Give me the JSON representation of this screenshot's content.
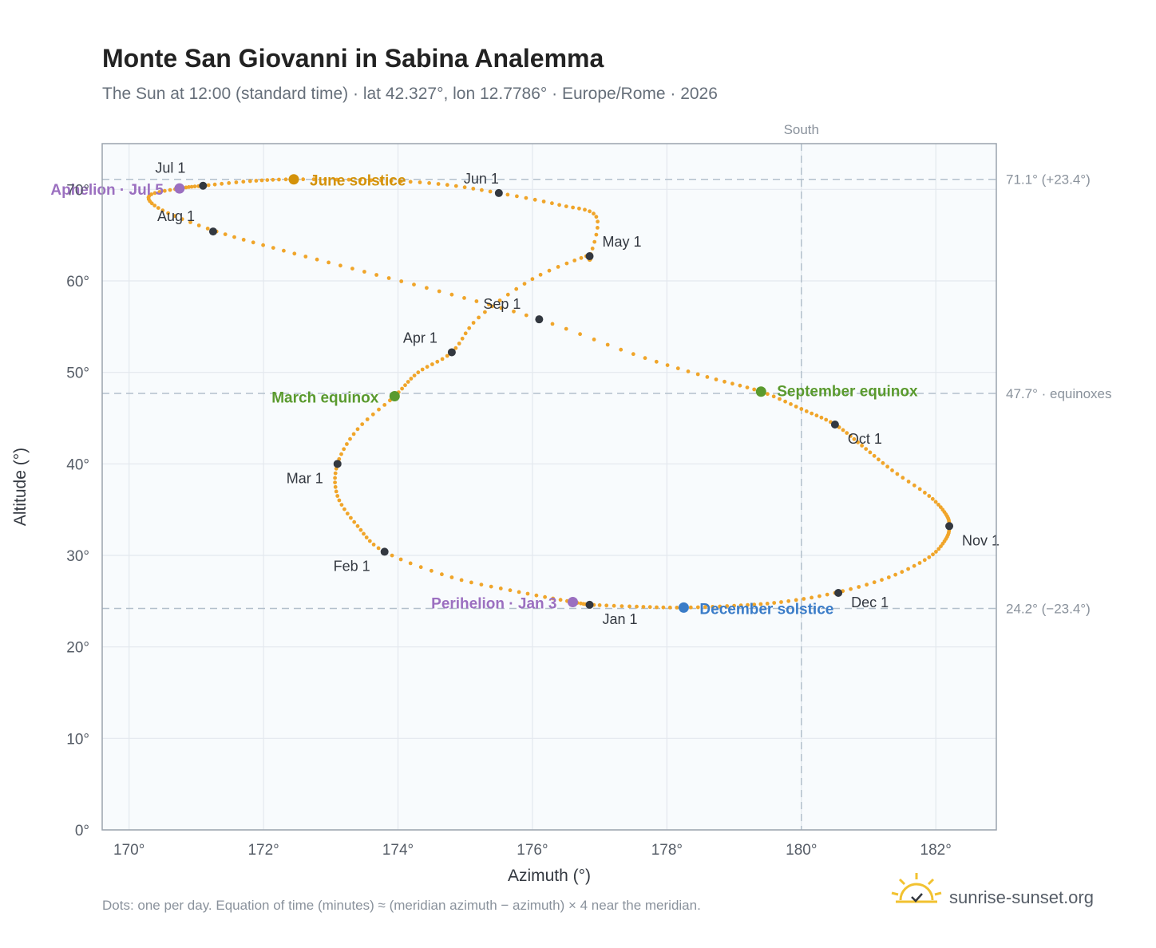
{
  "header": {
    "title": "Monte San Giovanni in Sabina Analemma",
    "subtitle": "The Sun at 12:00 (standard time) · lat 42.327°, lon 12.7786° · Europe/Rome · 2026"
  },
  "footer": {
    "note": "Dots: one per day. Equation of time (minutes) ≈ (meridian azimuth − azimuth) × 4 near the meridian.",
    "brand": "sunrise-sunset.org"
  },
  "colors": {
    "path": "#f0a52a",
    "month_marker": "#333840",
    "solstice_june": "#d4920a",
    "equinox": "#5a9a2e",
    "solstice_december": "#3a7cc8",
    "apsis": "#9b6fc0",
    "plot_bg": "#f8fbfd",
    "grid": "#e3e8ee",
    "ref_line": "#b3c0cc"
  },
  "chart_data": {
    "type": "scatter",
    "xlabel": "Azimuth (°)",
    "ylabel": "Altitude (°)",
    "xlim": [
      169.6,
      182.9
    ],
    "ylim": [
      0,
      75
    ],
    "xticks": [
      170,
      172,
      174,
      176,
      178,
      180,
      182
    ],
    "xtick_labels": [
      "170°",
      "172°",
      "174°",
      "176°",
      "178°",
      "180°",
      "182°"
    ],
    "yticks": [
      0,
      10,
      20,
      30,
      40,
      50,
      60,
      70
    ],
    "ytick_labels": [
      "0°",
      "10°",
      "20°",
      "30°",
      "40°",
      "50°",
      "60°",
      "70°"
    ],
    "grid": true,
    "meridian": {
      "azimuth": 180,
      "label": "South"
    },
    "reference_lines": [
      {
        "altitude": 71.1,
        "label": "71.1° (+23.4°)"
      },
      {
        "altitude": 47.7,
        "label": "47.7° · equinoxes"
      },
      {
        "altitude": 24.2,
        "label": "24.2° (−23.4°)"
      }
    ],
    "series": [
      {
        "name": "daily",
        "points": [
          [
            176.85,
            24.6
          ],
          [
            177.55,
            24.4
          ],
          [
            178.25,
            24.3
          ],
          [
            179.0,
            24.5
          ],
          [
            179.7,
            24.9
          ],
          [
            180.5,
            25.9
          ],
          [
            181.3,
            27.6
          ],
          [
            181.9,
            29.8
          ],
          [
            182.15,
            31.8
          ],
          [
            182.2,
            33.2
          ],
          [
            182.15,
            34.5
          ],
          [
            181.9,
            36.5
          ],
          [
            181.35,
            39.3
          ],
          [
            180.9,
            42.0
          ],
          [
            180.5,
            44.3
          ],
          [
            180.0,
            46.0
          ],
          [
            179.4,
            47.9
          ],
          [
            178.6,
            49.5
          ],
          [
            177.5,
            52.0
          ],
          [
            176.1,
            55.8
          ],
          [
            174.8,
            58.5
          ],
          [
            173.5,
            61.0
          ],
          [
            172.3,
            63.3
          ],
          [
            171.3,
            65.4
          ],
          [
            170.5,
            67.7
          ],
          [
            170.3,
            69.3
          ],
          [
            170.75,
            70.1
          ],
          [
            171.1,
            70.4
          ],
          [
            171.8,
            70.9
          ],
          [
            172.45,
            71.1
          ],
          [
            173.6,
            71.0
          ],
          [
            174.6,
            70.6
          ],
          [
            175.5,
            69.6
          ],
          [
            176.4,
            68.3
          ],
          [
            176.95,
            67.0
          ],
          [
            176.85,
            62.5
          ],
          [
            176.8,
            62.7
          ],
          [
            176.0,
            60.2
          ],
          [
            175.2,
            56.0
          ],
          [
            174.8,
            52.2
          ],
          [
            174.3,
            50.0
          ],
          [
            173.95,
            47.4
          ],
          [
            173.4,
            43.8
          ],
          [
            173.1,
            40.0
          ],
          [
            173.1,
            36.5
          ],
          [
            173.4,
            33.2
          ],
          [
            173.8,
            30.4
          ],
          [
            174.8,
            27.6
          ],
          [
            175.8,
            26.0
          ],
          [
            176.6,
            24.9
          ],
          [
            176.85,
            24.6
          ]
        ]
      }
    ],
    "month_markers": [
      {
        "label": "Jan 1",
        "azimuth": 176.85,
        "altitude": 24.6
      },
      {
        "label": "Feb 1",
        "azimuth": 173.8,
        "altitude": 30.4
      },
      {
        "label": "Mar 1",
        "azimuth": 173.1,
        "altitude": 40.0
      },
      {
        "label": "Apr 1",
        "azimuth": 174.8,
        "altitude": 52.2
      },
      {
        "label": "May 1",
        "azimuth": 176.85,
        "altitude": 62.7
      },
      {
        "label": "Jun 1",
        "azimuth": 175.5,
        "altitude": 69.6
      },
      {
        "label": "Jul 1",
        "azimuth": 171.1,
        "altitude": 70.4
      },
      {
        "label": "Aug 1",
        "azimuth": 171.25,
        "altitude": 65.4
      },
      {
        "label": "Sep 1",
        "azimuth": 176.1,
        "altitude": 55.8
      },
      {
        "label": "Oct 1",
        "azimuth": 180.5,
        "altitude": 44.3
      },
      {
        "label": "Nov 1",
        "azimuth": 182.2,
        "altitude": 33.2
      },
      {
        "label": "Dec 1",
        "azimuth": 180.55,
        "altitude": 25.9
      }
    ],
    "events": [
      {
        "label": "June solstice",
        "azimuth": 172.45,
        "altitude": 71.1,
        "color": "#d4920a"
      },
      {
        "label": "March equinox",
        "azimuth": 173.95,
        "altitude": 47.4,
        "color": "#5a9a2e"
      },
      {
        "label": "September equinox",
        "azimuth": 179.4,
        "altitude": 47.9,
        "color": "#5a9a2e"
      },
      {
        "label": "December solstice",
        "azimuth": 178.25,
        "altitude": 24.3,
        "color": "#3a7cc8"
      },
      {
        "label": "Aphelion · Jul 5",
        "azimuth": 170.75,
        "altitude": 70.1,
        "color": "#9b6fc0"
      },
      {
        "label": "Perihelion · Jan 3",
        "azimuth": 176.6,
        "altitude": 24.9,
        "color": "#9b6fc0"
      }
    ]
  }
}
